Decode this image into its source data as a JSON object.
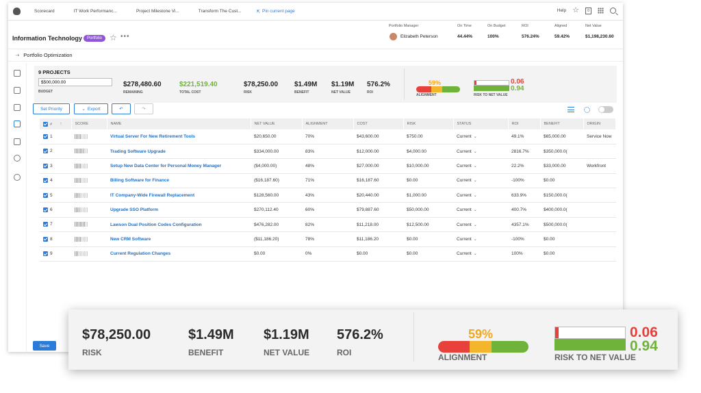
{
  "topbar": {
    "tabs": [
      "Scorecard",
      "IT Work Performanc...",
      "Project Milestone Vi...",
      "Transform The Cust..."
    ],
    "pin_label": "Pin current page",
    "help_label": "Help",
    "notification_count": "0"
  },
  "header": {
    "title": "Information Technology",
    "badge": "Portfolio",
    "manager_label": "Portfolio Manager",
    "manager_name": "Elizabeth Peterson",
    "metrics": [
      {
        "label": "On Time",
        "value": "44.44%"
      },
      {
        "label": "On Budget",
        "value": "100%"
      },
      {
        "label": "ROI",
        "value": "576.24%"
      },
      {
        "label": "Aligned",
        "value": "59.42%"
      },
      {
        "label": "Net Value",
        "value": "$1,198,230.60"
      }
    ]
  },
  "breadcrumb": "Portfolio Optimization",
  "summary": {
    "projects_label": "9 PROJECTS",
    "budget_value": "$500,000.00",
    "budget_label": "BUDGET",
    "remaining_value": "$278,480.60",
    "remaining_label": "REMAINING",
    "total_cost_value": "$221,519.40",
    "total_cost_label": "TOTAL COST",
    "risk_value": "$78,250.00",
    "risk_label": "RISK",
    "benefit_value": "$1.49M",
    "benefit_label": "BENEFIT",
    "net_value_value": "$1.19M",
    "net_value_label": "NET VALUE",
    "roi_value": "576.2%",
    "roi_label": "ROI",
    "alignment_pct": "59%",
    "alignment_label": "ALIGNMENT",
    "rtn_top": "0.06",
    "rtn_bottom": "0.94",
    "rtn_label": "RISK TO NET VALUE"
  },
  "toolbar": {
    "set_priority": "Set Priority",
    "export": "Export"
  },
  "table": {
    "headers": [
      "#",
      "SCORE",
      "NAME",
      "NET VALUE",
      "ALIGNMENT",
      "COST",
      "RISK",
      "STATUS",
      "ROI",
      "BENEFIT",
      "ORIGIN"
    ],
    "rows": [
      {
        "num": "1",
        "score": 5,
        "name": "Virtual Server For New Retirement Tools",
        "net_value": "$20,650.00",
        "alignment": "70%",
        "cost": "$43,600.00",
        "risk": "$750.00",
        "status": "Current",
        "roi": "49.1%",
        "benefit": "$65,000.00",
        "origin": "Service Now"
      },
      {
        "num": "2",
        "score": 7,
        "name": "Trading Software Upgrade",
        "net_value": "$334,000.00",
        "alignment": "83%",
        "cost": "$12,000.00",
        "risk": "$4,000.00",
        "status": "Current",
        "roi": "2816.7%",
        "benefit": "$350,000.0(",
        "origin": ""
      },
      {
        "num": "3",
        "score": 5,
        "name": "Setup New Data Center for Personal Money Manager",
        "net_value": "($4,000.00)",
        "alignment": "48%",
        "cost": "$27,000.00",
        "risk": "$10,000.00",
        "status": "Current",
        "roi": "22.2%",
        "benefit": "$33,000.00",
        "origin": "Workfront"
      },
      {
        "num": "4",
        "score": 5,
        "name": "Billing Software for Finance",
        "net_value": "($16,187.60)",
        "alignment": "71%",
        "cost": "$16,187.60",
        "risk": "$0.00",
        "status": "Current",
        "roi": "-100%",
        "benefit": "$0.00",
        "origin": ""
      },
      {
        "num": "5",
        "score": 4,
        "name": "IT Company-Wide Firewall Replacement",
        "net_value": "$128,560.00",
        "alignment": "43%",
        "cost": "$20,440.00",
        "risk": "$1,000.00",
        "status": "Current",
        "roi": "633.9%",
        "benefit": "$150,000.0(",
        "origin": ""
      },
      {
        "num": "6",
        "score": 4,
        "name": "Upgrade SSO Platform",
        "net_value": "$270,112.40",
        "alignment": "60%",
        "cost": "$79,887.60",
        "risk": "$50,000.00",
        "status": "Current",
        "roi": "400.7%",
        "benefit": "$400,000.0(",
        "origin": ""
      },
      {
        "num": "7",
        "score": 8,
        "name": "Lawson Dual Position Codes Configuration",
        "net_value": "$476,282.00",
        "alignment": "82%",
        "cost": "$11,218.00",
        "risk": "$12,500.00",
        "status": "Current",
        "roi": "4357.1%",
        "benefit": "$500,000.0(",
        "origin": ""
      },
      {
        "num": "8",
        "score": 5,
        "name": "New CRM Software",
        "net_value": "($11,186.20)",
        "alignment": "78%",
        "cost": "$11,186.20",
        "risk": "$0.00",
        "status": "Current",
        "roi": "-100%",
        "benefit": "$0.00",
        "origin": ""
      },
      {
        "num": "9",
        "score": 3,
        "name": "Current Regulation Changes",
        "net_value": "$0.00",
        "alignment": "0%",
        "cost": "$0.00",
        "risk": "$0.00",
        "status": "Current",
        "roi": "100%",
        "benefit": "$0.00",
        "origin": ""
      }
    ]
  },
  "save_label": "Save",
  "colors": {
    "accent": "#2b7bd8",
    "badge": "#8f57d6",
    "red": "#e8403a",
    "yellow": "#f2b52b",
    "green": "#6fb33b"
  },
  "alignment_fraction": 0.59,
  "rtn_fraction_top": 0.06,
  "rtn_fraction_bottom": 0.94
}
